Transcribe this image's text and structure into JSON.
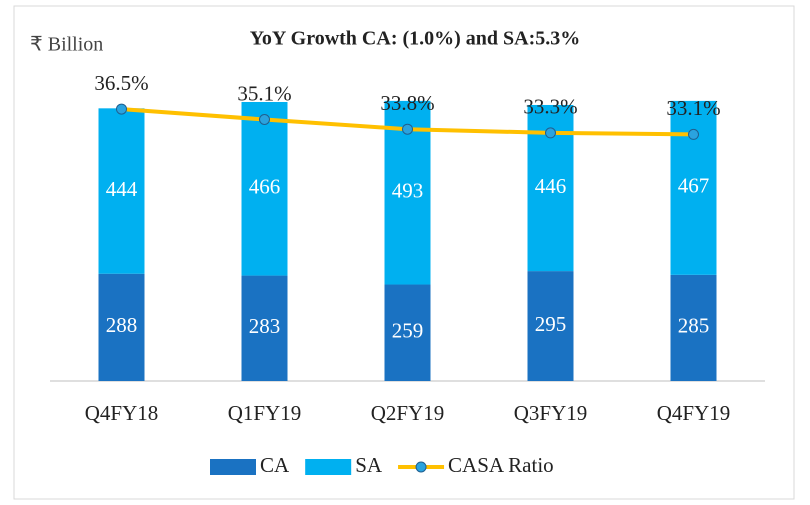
{
  "chart_data": {
    "type": "bar",
    "title": "YoY Growth CA:  (1.0%) and SA:5.3%",
    "y_axis_label": "₹ Billion",
    "categories": [
      "Q4FY18",
      "Q1FY19",
      "Q2FY19",
      "Q3FY19",
      "Q4FY19"
    ],
    "stacked": true,
    "ylim": [
      0,
      800
    ],
    "y2lim": [
      0,
      40
    ],
    "legend": "bottom",
    "series": [
      {
        "name": "CA",
        "color": "#1a72c2",
        "values": [
          288,
          283,
          259,
          295,
          285
        ]
      },
      {
        "name": "SA",
        "color": "#00b0f0",
        "values": [
          444,
          466,
          493,
          446,
          467
        ]
      },
      {
        "name": "CASA Ratio",
        "type": "line",
        "axis": "y2",
        "color": "#ffc000",
        "marker_color": "#2aa3df",
        "values": [
          36.5,
          35.1,
          33.8,
          33.3,
          33.1
        ],
        "value_labels": [
          "36.5%",
          "35.1%",
          "33.8%",
          "33.3%",
          "33.1%"
        ]
      }
    ]
  }
}
